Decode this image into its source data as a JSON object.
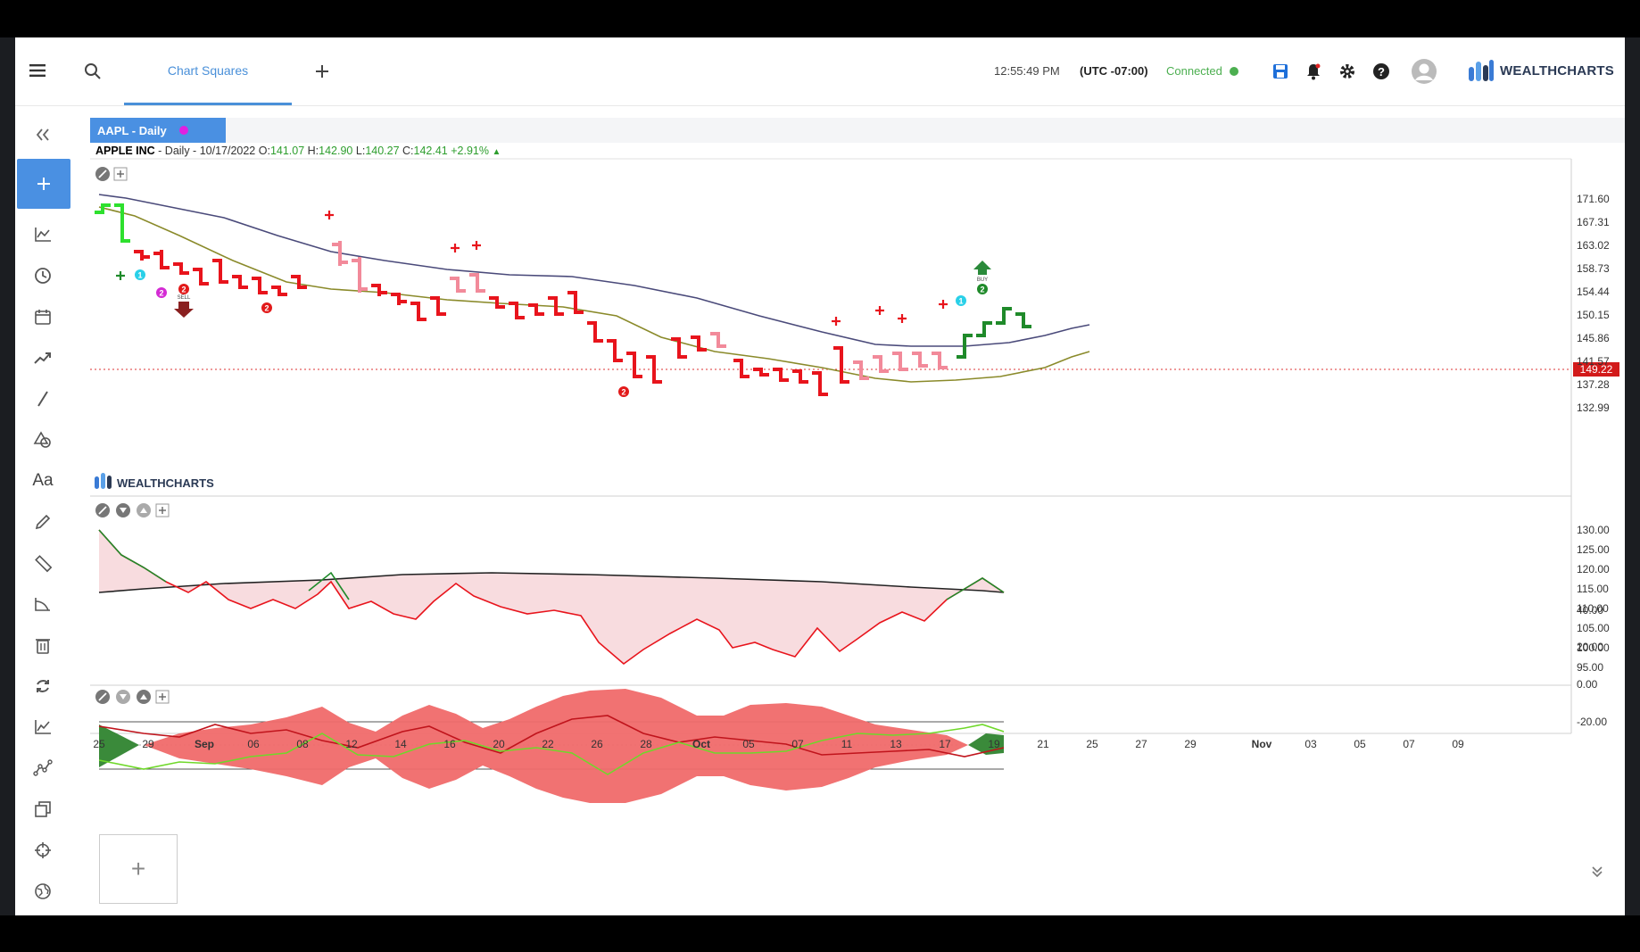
{
  "header": {
    "tab_label": "Chart Squares",
    "time": "12:55:49 PM",
    "timezone": "(UTC -07:00)",
    "connection_status": "Connected",
    "brand": "WEALTHCHARTS"
  },
  "chart": {
    "symbol_tab": "AAPL - Daily",
    "company": "APPLE INC",
    "info_prefix": " - Daily - 10/17/2022 ",
    "o_label": "O:",
    "o_value": "141.07",
    "h_label": "H:",
    "h_value": "142.90",
    "l_label": "L:",
    "l_value": "140.27",
    "c_label": "C:",
    "c_value": "142.41",
    "change": "+2.91%",
    "watermark": "WEALTHCHARTS",
    "last_price": "149.22",
    "price_axis": [
      "171.60",
      "167.31",
      "163.02",
      "158.73",
      "154.44",
      "150.15",
      "145.86",
      "141.57",
      "137.28",
      "132.99"
    ],
    "osc1_axis": [
      "130.00",
      "125.00",
      "120.00",
      "115.00",
      "110.00",
      "105.00",
      "100.00",
      "95.00"
    ],
    "osc2_axis": [
      "40.00",
      "20.00",
      "0.00",
      "-20.00"
    ],
    "date_axis": [
      "25",
      "29",
      "Sep",
      "06",
      "08",
      "12",
      "14",
      "16",
      "20",
      "22",
      "26",
      "28",
      "Oct",
      "05",
      "07",
      "11",
      "13",
      "17",
      "19",
      "21",
      "25",
      "27",
      "29",
      "Nov",
      "03",
      "05",
      "07",
      "09"
    ],
    "sell_label": "SELL",
    "buy_label": "BUY",
    "count_2": "2",
    "count_1": "1"
  },
  "colors": {
    "accent": "#4a90e2",
    "bear": "#e8141c",
    "bear_light": "#f28a9a",
    "bull": "#1f8a2a",
    "bull_light": "#2ee02e",
    "ma_slow": "#4a4a7a",
    "ma_fast": "#8a8a2a"
  },
  "sidebar_icons": [
    "collapse-icon",
    "add-icon",
    "chart-type-icon",
    "clock-icon",
    "calendar-icon",
    "trend-icon",
    "line-icon",
    "shapes-icon",
    "text-icon",
    "pencil-icon",
    "ruler-icon",
    "measure-icon",
    "trash-icon",
    "refresh-icon",
    "indicator-icon",
    "pattern-icon",
    "layers-icon",
    "crosshair-icon",
    "globe-icon"
  ]
}
